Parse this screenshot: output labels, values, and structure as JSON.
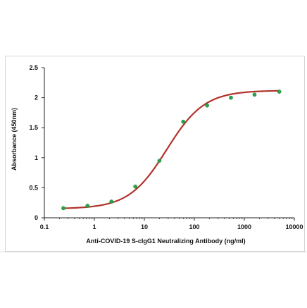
{
  "chart_data": {
    "type": "scatter",
    "title": "",
    "xlabel": "Anti-COVID-19 S-cIgG1 Neutralizing Antibody (ng/ml)",
    "ylabel": "Absorbance (450nm)",
    "x_scale": "log",
    "xlim": [
      0.1,
      10000
    ],
    "ylim": [
      0,
      2.5
    ],
    "x_ticks": [
      "0.1",
      "1",
      "10",
      "100",
      "1000",
      "10000"
    ],
    "y_ticks": [
      "0",
      "0.5",
      "1",
      "1.5",
      "2",
      "2.5"
    ],
    "grid": false,
    "legend": "none",
    "fit_curve": "4-parameter logistic",
    "series": [
      {
        "x": [
          0.24,
          0.73,
          2.2,
          6.6,
          20,
          60,
          180,
          540,
          1600,
          5000
        ],
        "y": [
          0.16,
          0.2,
          0.27,
          0.52,
          0.95,
          1.6,
          1.87,
          2.0,
          2.05,
          2.1
        ]
      }
    ],
    "colors": {
      "curve": "#b0342c",
      "point": "#2aa34a",
      "axis": "#222222"
    }
  }
}
